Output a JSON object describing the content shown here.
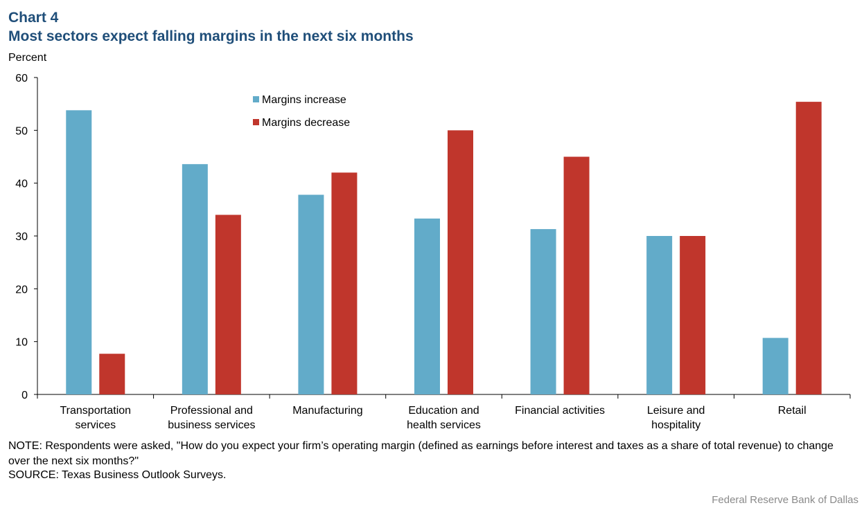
{
  "header": {
    "chart_number": "Chart 4",
    "title": "Most sectors expect falling margins in the next six months",
    "y_unit": "Percent"
  },
  "footer": {
    "note": "NOTE: Respondents were asked, \"How do you expect your firm’s operating margin (defined as earnings before interest and taxes as a share of total revenue) to change over the next six months?\"",
    "source": "SOURCE: Texas Business Outlook Surveys.",
    "credit": "Federal Reserve Bank of Dallas"
  },
  "chart_data": {
    "type": "bar",
    "title": "Most sectors expect falling margins in the next six months",
    "ylabel": "Percent",
    "xlabel": "",
    "ylim": [
      0,
      60
    ],
    "yticks": [
      0,
      10,
      20,
      30,
      40,
      50,
      60
    ],
    "grid": false,
    "legend_position": "top-center",
    "categories": [
      [
        "Transportation",
        "services"
      ],
      [
        "Professional and",
        "business services"
      ],
      [
        "Manufacturing"
      ],
      [
        "Education and",
        "health services"
      ],
      [
        "Financial activities"
      ],
      [
        "Leisure and",
        "hospitality"
      ],
      [
        "Retail"
      ]
    ],
    "series": [
      {
        "name": "Margins increase",
        "color": "#62abc9",
        "values": [
          53.8,
          43.6,
          37.8,
          33.3,
          31.3,
          30.0,
          10.7
        ]
      },
      {
        "name": "Margins decrease",
        "color": "#c0362c",
        "values": [
          7.7,
          34.0,
          42.0,
          50.0,
          45.0,
          30.0,
          55.4
        ]
      }
    ]
  }
}
